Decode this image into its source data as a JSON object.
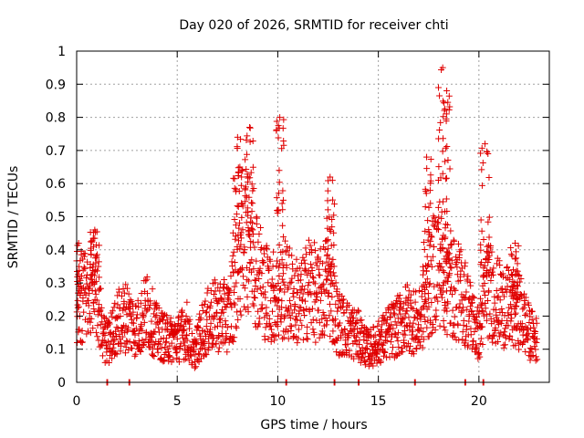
{
  "chart_data": {
    "type": "scatter",
    "title": "Day 020 of 2026, SRMTID for receiver chti",
    "xlabel": "GPS time / hours",
    "ylabel": "SRMTID / TECUs",
    "xlim": [
      0,
      23.5
    ],
    "ylim": [
      0,
      1
    ],
    "xticks": [
      "0",
      "5",
      "10",
      "15",
      "20"
    ],
    "xtick_values": [
      0,
      5,
      10,
      15,
      20
    ],
    "yticks": [
      "0",
      "0.1",
      "0.2",
      "0.3",
      "0.4",
      "0.5",
      "0.6",
      "0.7",
      "0.8",
      "0.9",
      "1"
    ],
    "ytick_values": [
      0,
      0.1,
      0.2,
      0.3,
      0.4,
      0.5,
      0.6,
      0.7,
      0.8,
      0.9,
      1.0
    ],
    "grid": true,
    "marker": "+",
    "color": "#e00000",
    "series": [
      {
        "name": "SRMTID",
        "segments": [
          {
            "x": [
              0,
              0.5,
              1.0,
              1.3,
              1.6,
              2.0,
              2.5,
              3.0,
              3.5,
              4.0,
              4.5,
              5.0,
              5.5,
              5.8,
              6.2,
              6.7,
              7.2,
              7.6,
              8.0,
              8.4,
              8.8,
              9.2,
              9.6,
              10.0,
              10.4,
              10.8,
              11.2,
              11.6,
              12.0,
              12.5,
              13.0,
              13.5,
              14.0,
              14.5,
              15.0,
              15.5,
              16.0,
              16.5,
              17.0,
              17.5,
              18.0,
              18.4,
              18.8,
              19.2,
              19.6,
              20.0,
              20.4,
              20.8,
              21.2,
              21.6,
              22.0,
              22.5,
              23.0
            ],
            "y": [
              0.24,
              0.27,
              0.3,
              0.14,
              0.12,
              0.18,
              0.2,
              0.16,
              0.22,
              0.15,
              0.13,
              0.13,
              0.16,
              0.08,
              0.15,
              0.2,
              0.2,
              0.2,
              0.35,
              0.48,
              0.4,
              0.3,
              0.26,
              0.26,
              0.28,
              0.25,
              0.24,
              0.3,
              0.25,
              0.3,
              0.18,
              0.16,
              0.14,
              0.1,
              0.12,
              0.15,
              0.17,
              0.2,
              0.17,
              0.28,
              0.38,
              0.3,
              0.28,
              0.26,
              0.2,
              0.14,
              0.3,
              0.25,
              0.23,
              0.22,
              0.22,
              0.15,
              0.12
            ]
          }
        ],
        "spikes": [
          {
            "x": 0.1,
            "ymax": 0.42
          },
          {
            "x": 0.9,
            "ymax": 0.46
          },
          {
            "x": 8.0,
            "ymax": 0.74
          },
          {
            "x": 8.6,
            "ymax": 0.77
          },
          {
            "x": 10.1,
            "ymax": 0.8
          },
          {
            "x": 12.6,
            "ymax": 0.62
          },
          {
            "x": 17.4,
            "ymax": 0.68
          },
          {
            "x": 18.2,
            "ymax": 0.95
          },
          {
            "x": 18.4,
            "ymax": 0.88
          },
          {
            "x": 20.3,
            "ymax": 0.72
          },
          {
            "x": 21.8,
            "ymax": 0.42
          }
        ],
        "zero_points_x": [
          1.5,
          2.6,
          10.4,
          12.8,
          14.0,
          16.8,
          19.3,
          20.2
        ]
      }
    ]
  }
}
